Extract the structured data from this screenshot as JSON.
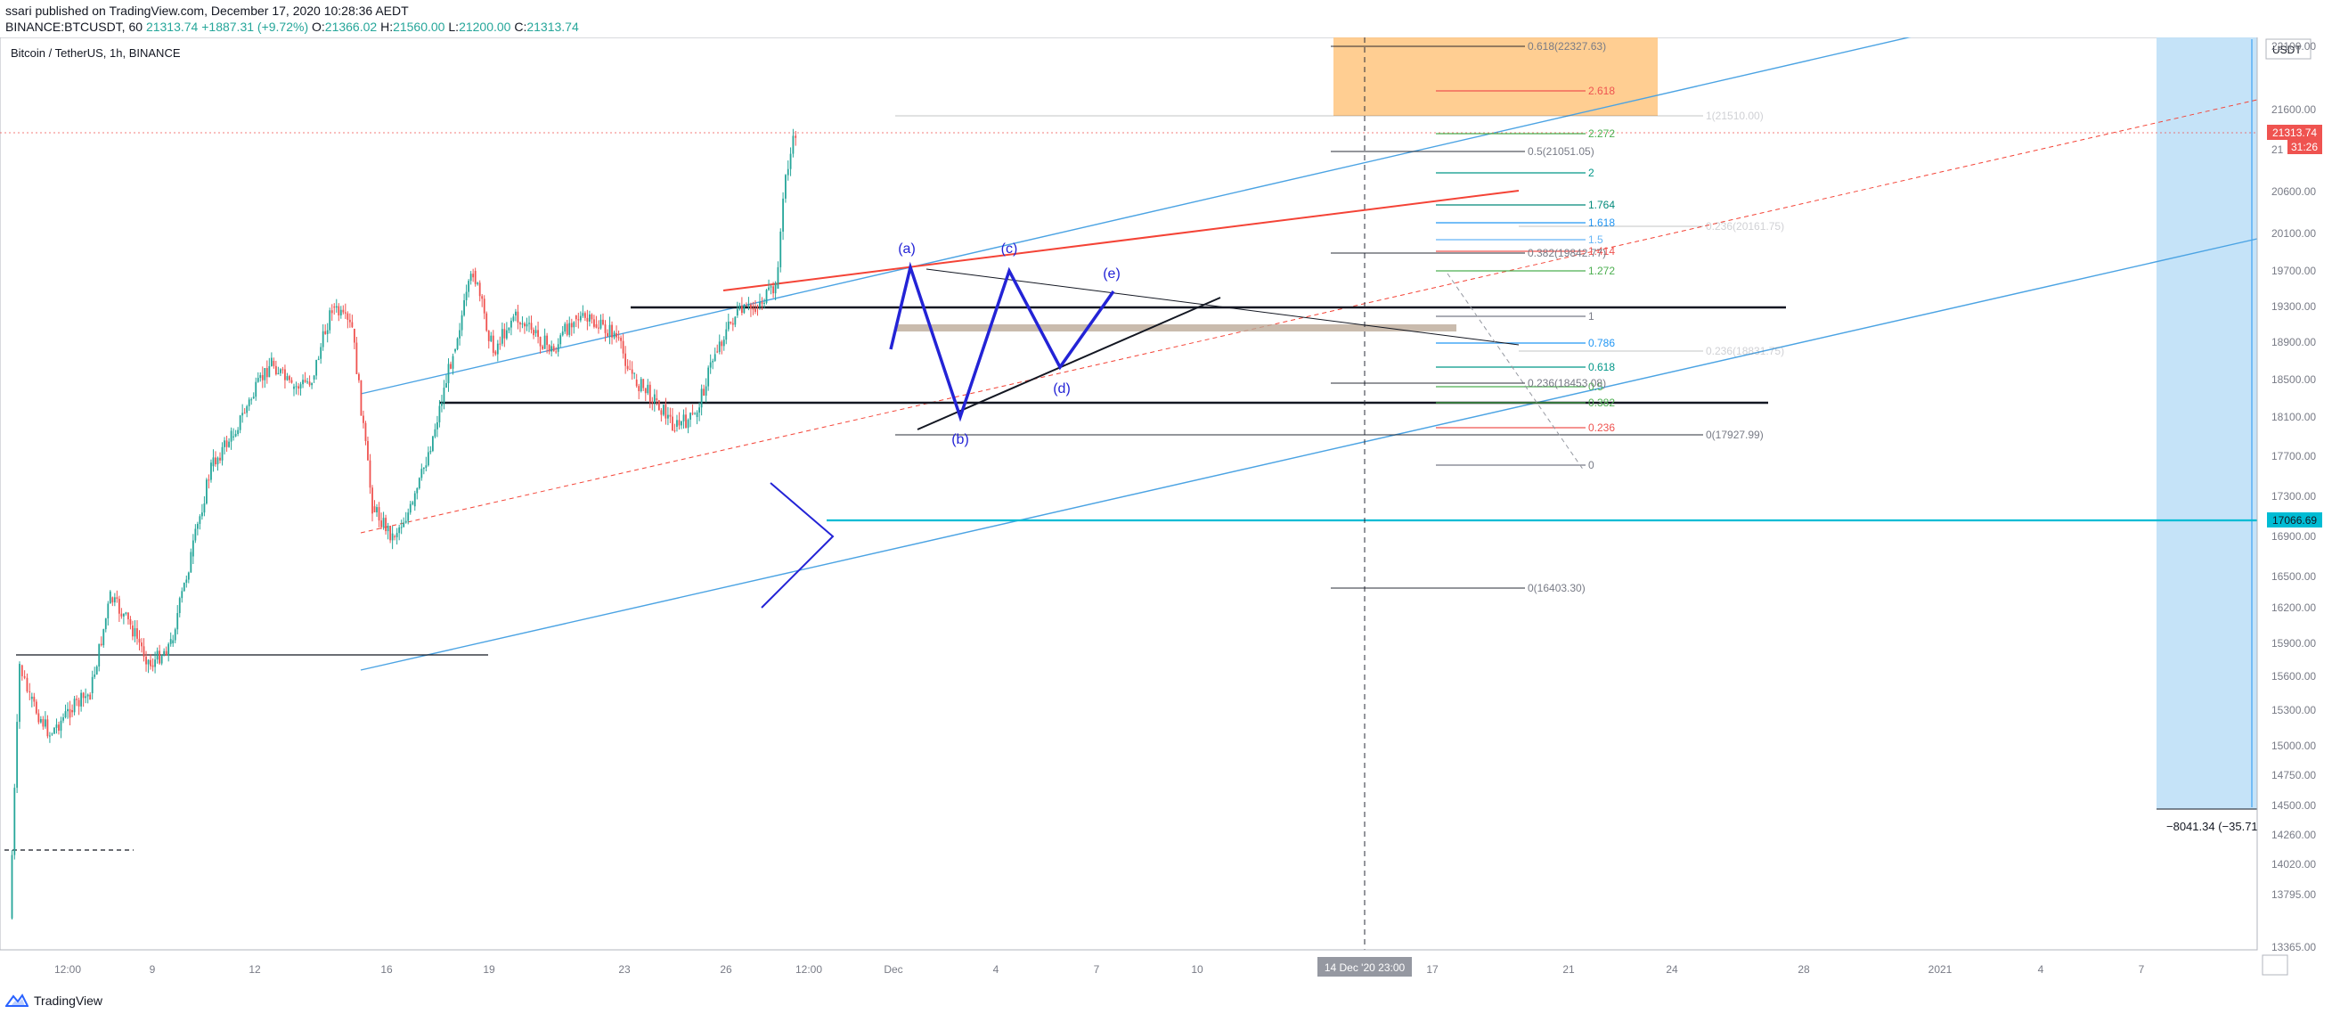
{
  "header": {
    "line1": "ssari published on TradingView.com, December 17, 2020 10:28:36 AEDT",
    "symbol": "BINANCE:BTCUSDT, 60",
    "last": "21313.74",
    "change": "+1887.31 (+9.72%)",
    "o_label": "O:",
    "o": "21366.02",
    "h_label": "H:",
    "h": "21560.00",
    "l_label": "L:",
    "l": "21200.00",
    "c_label": "C:",
    "c": "21313.74"
  },
  "footer": {
    "brand": "TradingView"
  },
  "colors": {
    "up": "#26a69a",
    "down": "#ef5350",
    "channel": "#4ba3e3",
    "accent_red": "#f44336",
    "cyan": "#00bcd4",
    "orange_zone": "#ffc67f",
    "blue_zone": "#bfe0f7",
    "wave": "#2323d6"
  },
  "chart_data": {
    "type": "candlestick",
    "title": "Bitcoin / TetherUS, 1h, BINANCE",
    "currency": "USDT",
    "ylim": [
      13365,
      22200
    ],
    "y_ticks": [
      "22100.00",
      "21600.00",
      "20600.00",
      "20100.00",
      "19700.00",
      "19300.00",
      "18900.00",
      "18500.00",
      "18100.00",
      "17700.00",
      "17300.00",
      "16900.00",
      "16500.00",
      "16200.00",
      "15900.00",
      "15600.00",
      "15300.00",
      "15000.00",
      "14750.00",
      "14500.00",
      "14260.00",
      "14020.00",
      "13795.00",
      "13365.00"
    ],
    "y_labels_partial": [
      "21"
    ],
    "x_ticks": [
      "12:00",
      "9",
      "12",
      "16",
      "19",
      "23",
      "26",
      "12:00",
      "Dec",
      "4",
      "7",
      "10",
      "17",
      "21",
      "24",
      "28",
      "2021",
      "4",
      "7"
    ],
    "crosshair_x_label": "14 Dec '20   23:00",
    "last_price": "21313.74",
    "countdown": "31:26",
    "hline_label": "17066.69",
    "measure_label": "−8041.34 (−35.71",
    "series": [
      {
        "name": "BTCUSDT 1h",
        "ohlc_path": [
          [
            "Nov 8",
            13600
          ],
          [
            "Nov 8 12:00",
            15700
          ],
          [
            "Nov 9",
            15400
          ],
          [
            "Nov 10",
            15100
          ],
          [
            "Nov 11",
            15300
          ],
          [
            "Nov 12",
            15450
          ],
          [
            "Nov 13",
            16300
          ],
          [
            "Nov 14",
            16050
          ],
          [
            "Nov 15",
            15700
          ],
          [
            "Nov 16",
            15900
          ],
          [
            "Nov 17",
            16700
          ],
          [
            "Nov 18",
            17600
          ],
          [
            "Nov 19",
            17900
          ],
          [
            "Nov 20",
            18300
          ],
          [
            "Nov 21",
            18700
          ],
          [
            "Nov 22",
            18400
          ],
          [
            "Nov 23",
            18500
          ],
          [
            "Nov 24",
            19300
          ],
          [
            "Nov 25",
            19050
          ],
          [
            "Nov 26",
            17200
          ],
          [
            "Nov 27",
            16900
          ],
          [
            "Nov 28",
            17200
          ],
          [
            "Nov 29",
            17900
          ],
          [
            "Nov 30",
            18800
          ],
          [
            "Dec 1",
            19700
          ],
          [
            "Dec 2",
            18800
          ],
          [
            "Dec 3",
            19200
          ],
          [
            "Dec 4",
            19000
          ],
          [
            "Dec 5",
            18800
          ],
          [
            "Dec 6",
            19200
          ],
          [
            "Dec 7",
            19100
          ],
          [
            "Dec 8",
            19000
          ],
          [
            "Dec 9",
            18500
          ],
          [
            "Dec 10",
            18300
          ],
          [
            "Dec 11",
            18000
          ],
          [
            "Dec 12",
            18100
          ],
          [
            "Dec 13",
            18800
          ],
          [
            "Dec 14",
            19200
          ],
          [
            "Dec 15",
            19300
          ],
          [
            "Dec 16",
            19500
          ],
          [
            "Dec 16 12:00",
            20800
          ],
          [
            "Dec 17",
            21313.74
          ]
        ]
      }
    ],
    "fib_right": [
      "2.618",
      "2.272",
      "2",
      "1.764",
      "1.618",
      "1.5",
      "1.414",
      "1.272",
      "1",
      "0.786",
      "0.618",
      "0.5",
      "0.382",
      "0.236",
      "0"
    ],
    "fib_left": [
      "0.618(22327.63)",
      "0.5(21051.05)",
      "0.382(19842.77)",
      "0.236(18453.08)",
      "0(16403.30)",
      "0(17927.99)",
      "1(21510.00)",
      "0.236(18831.75)",
      "0.236(20161.75)"
    ],
    "wave_labels": [
      "(a)",
      "(b)",
      "(c)",
      "(d)",
      "(e)"
    ]
  }
}
